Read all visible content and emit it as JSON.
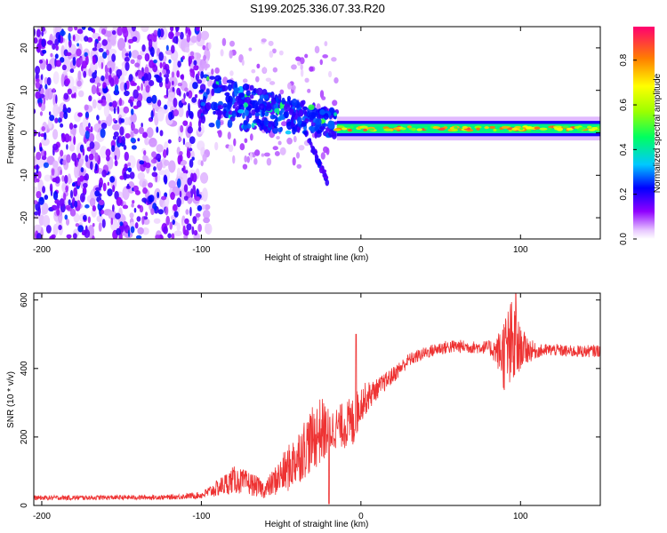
{
  "title": "S199.2025.336.07.33.R20",
  "chart_data": [
    {
      "type": "heatmap",
      "name": "spectrogram",
      "xlabel": "Height of straight line (km)",
      "ylabel": "Frequency (Hz)",
      "xlim": [
        -205,
        150
      ],
      "ylim": [
        -25,
        25
      ],
      "xticks": [
        -200,
        -100,
        0,
        100
      ],
      "yticks": [
        -20,
        -10,
        0,
        10,
        20
      ],
      "colorbar": {
        "label": "Normalized spectral amplitude",
        "range": [
          0,
          0.95
        ],
        "ticks": [
          0.0,
          0.2,
          0.4,
          0.6,
          0.8
        ]
      },
      "features": {
        "noise_region_x": [
          -205,
          -100
        ],
        "noise_amplitude": [
          0.2,
          0.45
        ],
        "transition_region_x": [
          -100,
          -15
        ],
        "transition_freq_hz": [
          8,
          2
        ],
        "tail_start_x": -20,
        "tail_freq_hz": -12,
        "carrier_region_x": [
          -15,
          150
        ],
        "carrier_freq_hz": 1,
        "carrier_amplitude": [
          0.5,
          0.95
        ]
      }
    },
    {
      "type": "line",
      "name": "snr",
      "xlabel": "Height of straight line (km)",
      "ylabel": "SNR (10 * v/v)",
      "xlim": [
        -205,
        150
      ],
      "ylim": [
        0,
        620
      ],
      "xticks": [
        -200,
        -100,
        0,
        100
      ],
      "yticks": [
        0,
        200,
        400,
        600
      ],
      "color": "#ee3333",
      "envelope": {
        "x": [
          -205,
          -120,
          -100,
          -90,
          -80,
          -70,
          -60,
          -45,
          -35,
          -25,
          -20,
          -15,
          -5,
          0,
          10,
          20,
          30,
          40,
          50,
          60,
          70,
          80,
          85,
          90,
          95,
          100,
          110,
          120,
          130,
          140,
          150
        ],
        "mean": [
          22,
          24,
          30,
          50,
          75,
          65,
          45,
          110,
          170,
          220,
          215,
          230,
          240,
          300,
          340,
          380,
          425,
          445,
          460,
          465,
          462,
          462,
          450,
          445,
          460,
          460,
          450,
          455,
          450,
          450,
          452
        ],
        "noise": [
          7,
          7,
          10,
          25,
          40,
          35,
          25,
          70,
          90,
          100,
          70,
          60,
          80,
          55,
          30,
          25,
          20,
          18,
          20,
          20,
          18,
          20,
          40,
          120,
          150,
          60,
          20,
          18,
          18,
          18,
          18
        ]
      },
      "spikes": [
        {
          "x": -20,
          "y": 5
        },
        {
          "x": -3,
          "y": 500
        },
        {
          "x": 97,
          "y": 620
        }
      ]
    }
  ]
}
